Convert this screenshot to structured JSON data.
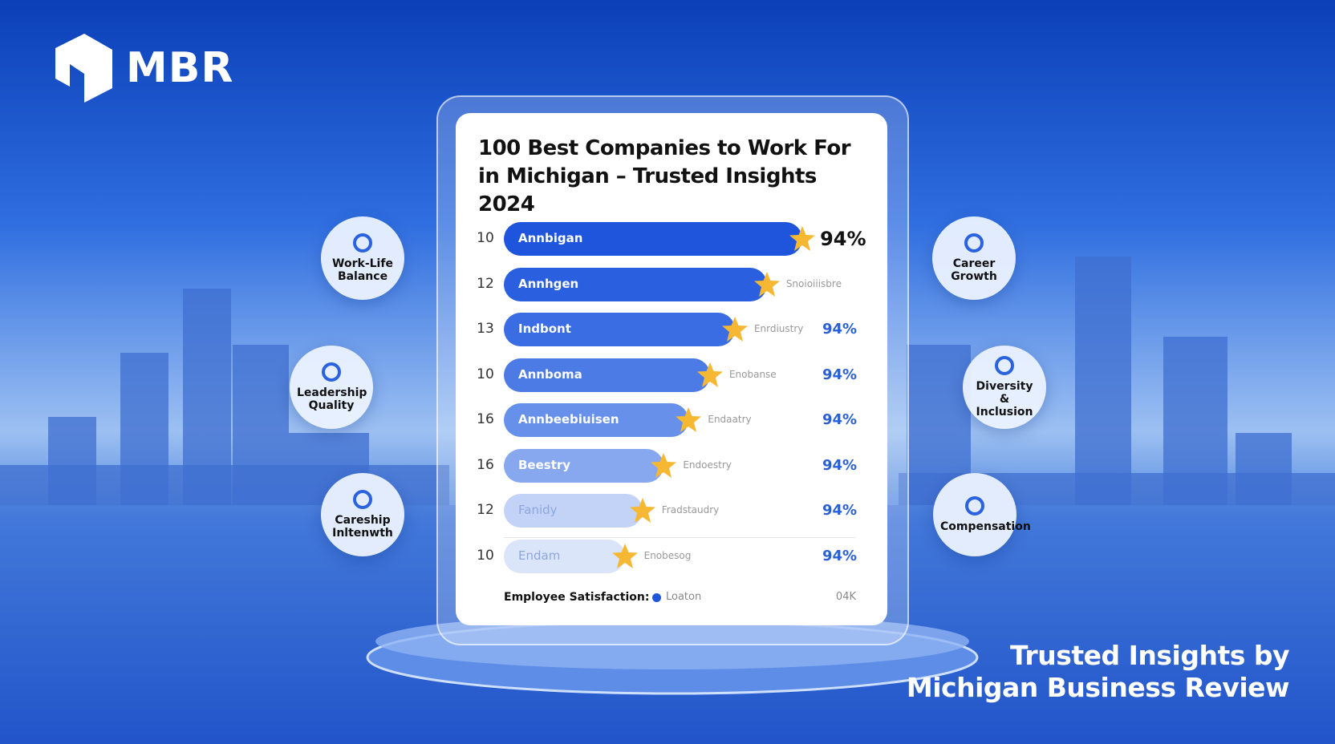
{
  "brand": "MBR",
  "badges": [
    "Work-Life Balance",
    "Leadership Quality",
    "Careship Inltenwth",
    "Career Growth",
    "Diversity & Inclusion",
    "Compensation"
  ],
  "tagline": [
    "Trusted Insights by",
    "Michigan Business Review"
  ],
  "chart_data": {
    "type": "bar",
    "orientation": "horizontal",
    "title": "100 Best Companies to Work For in Michigan – Trusted Insights 2024",
    "ranks": [
      "10",
      "12",
      "13",
      "10",
      "16",
      "16",
      "12",
      "10"
    ],
    "categories": [
      "Annbigan",
      "Annhgen",
      "Indbont",
      "Annboma",
      "Annbeebiuisen",
      "Beestry",
      "Fanidy",
      "Endam"
    ],
    "industries": [
      null,
      "Snoioiiisbre",
      "Enrdiustry",
      "Enobanse",
      "Endaatry",
      "Endoestry",
      "Fradstaudry",
      "Enobesog"
    ],
    "scores": [
      "94%",
      null,
      "94%",
      "94%",
      "94%",
      "94%",
      "94%",
      "94%"
    ],
    "values": [
      84,
      74,
      65,
      58,
      52,
      45,
      39,
      34
    ],
    "xlim": [
      0,
      100
    ],
    "colors": [
      "#1f55dc",
      "#2a5fe0",
      "#3a6ce4",
      "#4d7be6",
      "#6690ea",
      "#87a8ef",
      "#c3d3f7",
      "#dbe5fa"
    ],
    "footer_label": "Employee Satisfaction:",
    "legend_label": "Loaton",
    "footer_value": "04K"
  }
}
